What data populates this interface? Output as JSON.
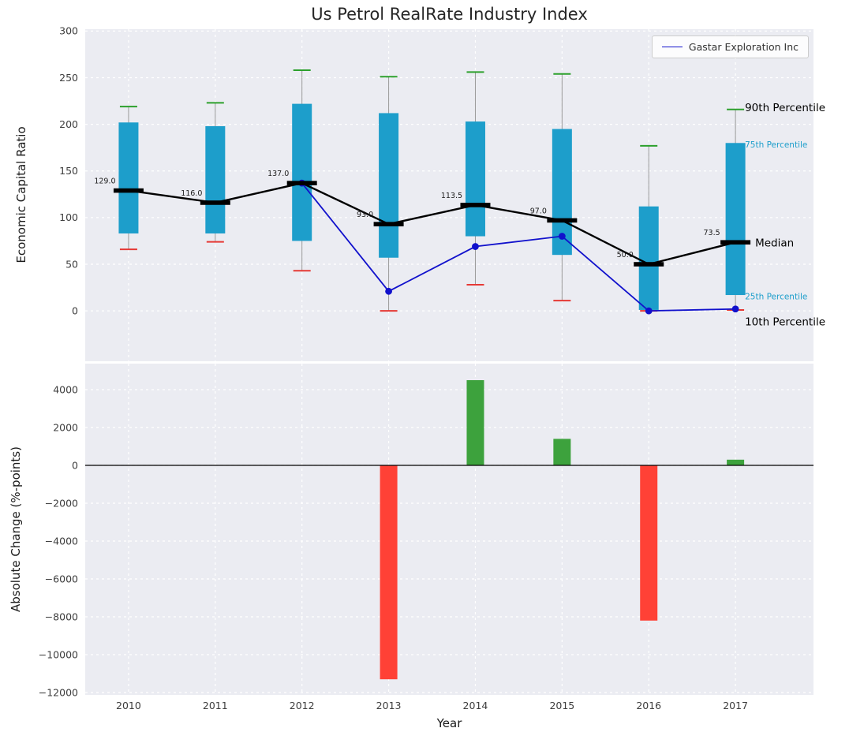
{
  "figure": {
    "title": "Us Petrol RealRate Industry Index",
    "xlabel": "Year",
    "legend": {
      "label": "Gastar Exploration Inc"
    }
  },
  "colors": {
    "panel_bg": "#ebecf2",
    "grid": "#ffffff",
    "box_fill": "#1d9ecb",
    "p90_cap": "#2ca02c",
    "p10_cap": "#e53935",
    "median": "#000000",
    "company_line": "#1111cc",
    "bar_positive": "#3da23d",
    "bar_negative": "#ff4136",
    "annotation_percentile": "#1d9ecb"
  },
  "chart_data": [
    {
      "type": "box",
      "panel": "top",
      "title": "Us Petrol RealRate Industry Index",
      "ylabel": "Economic Capital Ratio",
      "ylim": [
        -54,
        302
      ],
      "yticks": [
        300,
        250,
        200,
        150,
        100,
        50,
        0
      ],
      "grid": true,
      "legend_position": "upper right",
      "categories": [
        2010,
        2011,
        2012,
        2013,
        2014,
        2015,
        2016,
        2017
      ],
      "series": {
        "p90": [
          219,
          223,
          258,
          251,
          256,
          254,
          177,
          216
        ],
        "p75": [
          202,
          198,
          222,
          212,
          203,
          195,
          112,
          180
        ],
        "median": [
          129,
          116,
          137,
          93,
          113.5,
          97,
          50,
          73.5
        ],
        "p25": [
          83,
          83,
          75,
          57,
          80,
          60,
          1,
          17
        ],
        "p10": [
          66,
          74,
          43,
          0,
          28,
          11,
          0,
          1
        ]
      },
      "median_labels": [
        "129.0",
        "116.0",
        "137.0",
        "93.0",
        "113.5",
        "97.0",
        "50.0",
        "73.5"
      ],
      "company_line": {
        "name": "Gastar Exploration Inc",
        "years": [
          2012,
          2013,
          2014,
          2015,
          2016,
          2017
        ],
        "values": [
          137,
          21,
          69,
          80,
          0,
          2
        ]
      },
      "annotations": [
        {
          "label": "90th Percentile",
          "anchor": "p90",
          "color": "black",
          "size": "large"
        },
        {
          "label": "75th Percentile",
          "anchor": "p75",
          "color": "percentile",
          "size": "small"
        },
        {
          "label": "Median",
          "anchor": "median",
          "color": "black",
          "size": "large"
        },
        {
          "label": "25th Percentile",
          "anchor": "p25",
          "color": "percentile",
          "size": "small"
        },
        {
          "label": "10th Percentile",
          "anchor": "p10",
          "color": "black",
          "size": "large"
        }
      ]
    },
    {
      "type": "bar",
      "panel": "bottom",
      "ylabel": "Absolute Change (%-points)",
      "xlabel": "Year",
      "ylim": [
        -12125,
        5375
      ],
      "yticks": [
        4000,
        2000,
        0,
        -2000,
        -4000,
        -6000,
        -8000,
        -10000,
        -12000
      ],
      "grid": true,
      "zero_line": true,
      "categories": [
        2010,
        2011,
        2012,
        2013,
        2014,
        2015,
        2016,
        2017
      ],
      "values": [
        0,
        0,
        0,
        -11300,
        4500,
        1400,
        -8200,
        300
      ]
    }
  ]
}
